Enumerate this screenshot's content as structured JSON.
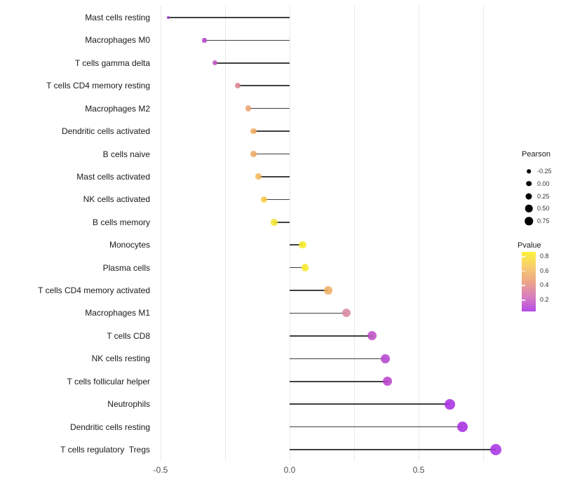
{
  "chart_data": {
    "type": "scatter",
    "variant": "lollipop",
    "title": "",
    "xlabel": "",
    "ylabel": "",
    "grid": "vertical-only",
    "legend_position": "right",
    "xlim": [
      -0.52,
      0.83
    ],
    "x_ticks": {
      "values": [
        -0.5,
        0.0,
        0.5
      ],
      "labels": [
        "-0.5",
        "0.0",
        "0.5"
      ]
    },
    "x_gridlines": [
      -0.5,
      -0.25,
      0.0,
      0.25,
      0.5,
      0.75
    ],
    "points": [
      {
        "label": "Mast cells resting",
        "pearson": -0.47,
        "color": "#9b3ac4"
      },
      {
        "label": "Macrophages M0",
        "pearson": -0.33,
        "color": "#b444c8"
      },
      {
        "label": "T cells gamma delta",
        "pearson": -0.29,
        "color": "#c159c3"
      },
      {
        "label": "T cells CD4 memory resting",
        "pearson": -0.2,
        "color": "#de8894"
      },
      {
        "label": "Macrophages M2",
        "pearson": -0.16,
        "color": "#eca471"
      },
      {
        "label": "Dendritic cells activated",
        "pearson": -0.14,
        "color": "#f0ad62"
      },
      {
        "label": "B cells naive",
        "pearson": -0.14,
        "color": "#efaa67"
      },
      {
        "label": "Mast cells activated",
        "pearson": -0.12,
        "color": "#f2ba5a"
      },
      {
        "label": "NK cells activated",
        "pearson": -0.1,
        "color": "#f5cc47"
      },
      {
        "label": "B cells memory",
        "pearson": -0.06,
        "color": "#f4e530"
      },
      {
        "label": "Monocytes",
        "pearson": 0.05,
        "color": "#f6eb23"
      },
      {
        "label": "Plasma cells",
        "pearson": 0.06,
        "color": "#f6ea28"
      },
      {
        "label": "T cells CD4 memory activated",
        "pearson": 0.15,
        "color": "#efae66"
      },
      {
        "label": "Macrophages M1",
        "pearson": 0.22,
        "color": "#d9879f"
      },
      {
        "label": "T cells CD8",
        "pearson": 0.32,
        "color": "#be51c6"
      },
      {
        "label": "NK cells resting",
        "pearson": 0.37,
        "color": "#b445cf"
      },
      {
        "label": "T cells follicular helper",
        "pearson": 0.38,
        "color": "#b843cd"
      },
      {
        "label": "Neutrophils",
        "pearson": 0.62,
        "color": "#a930e2"
      },
      {
        "label": "Dendritic cells resting",
        "pearson": 0.67,
        "color": "#a82ee0"
      },
      {
        "label": "T cells regulatory  Tregs",
        "pearson": 0.8,
        "color": "#a935e6"
      }
    ],
    "legend_size": {
      "title": "Pearson",
      "entries": [
        "-0.25",
        "0.00",
        "0.25",
        "0.50",
        "0.75"
      ],
      "dot_color": "#000000"
    },
    "legend_color": {
      "title": "Pvalue",
      "tick_labels": [
        "0.8",
        "0.6",
        "0.4",
        "0.2"
      ],
      "gradient_top_to_bottom": [
        "#fbf23c",
        "#f7cd6e",
        "#eca687",
        "#d97fbe",
        "#b44be8"
      ]
    },
    "colors": {
      "stem": "#3f3f3f",
      "gridline": "#e9e9e9",
      "background": "#ffffff",
      "axis_text": "#4d4d4d",
      "label_text": "#1a1a1a"
    }
  }
}
